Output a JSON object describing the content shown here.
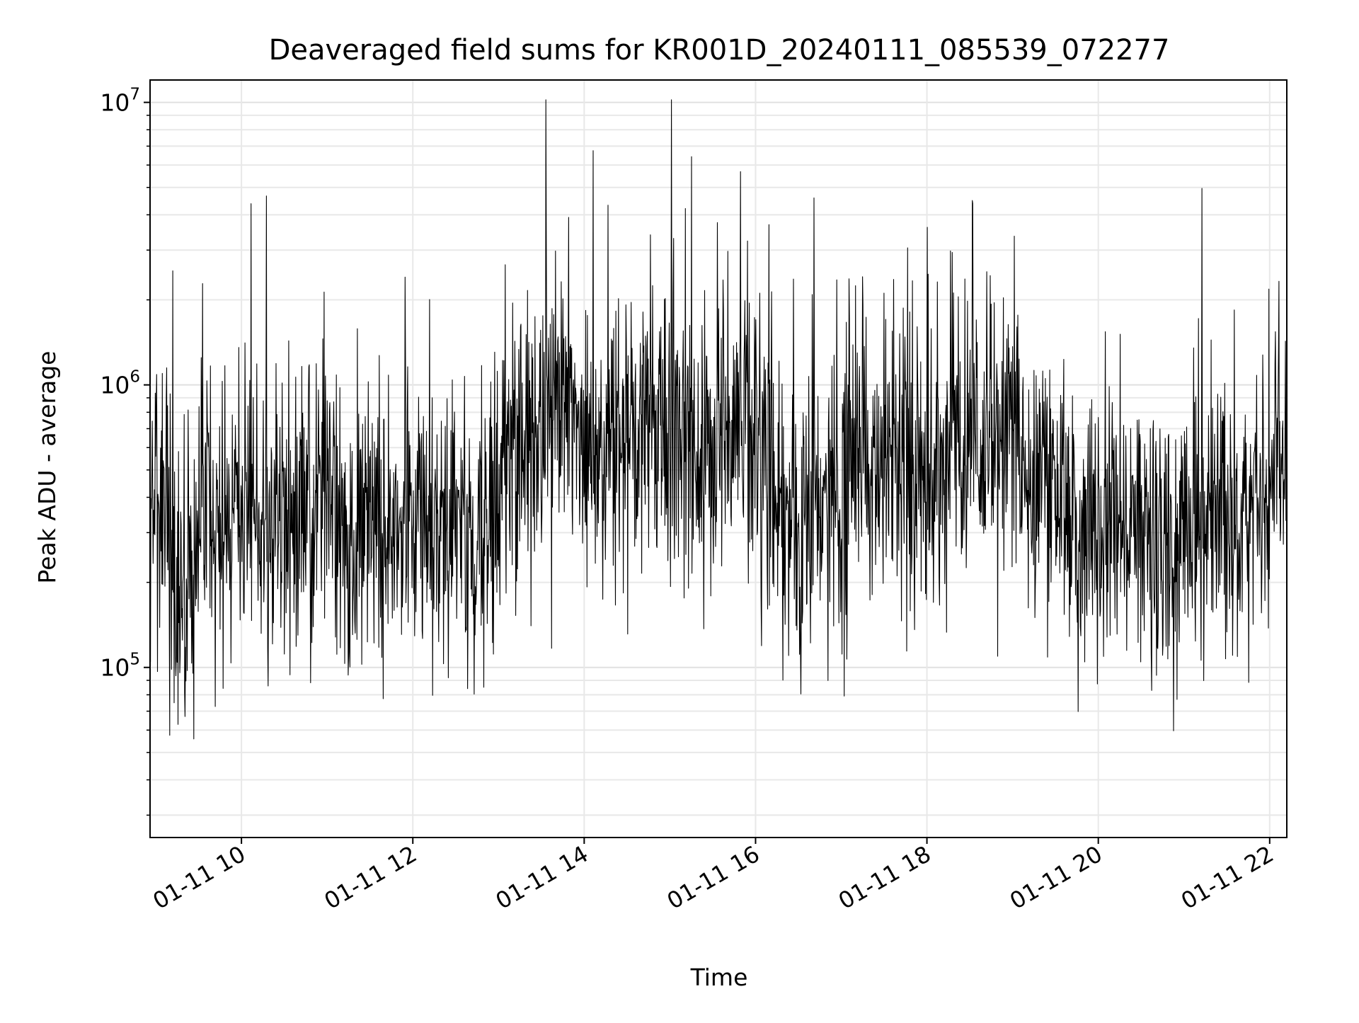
{
  "chart_data": {
    "type": "line",
    "title": "Deaveraged field sums for KR001D_20240111_085539_072277",
    "xlabel": "Time",
    "ylabel": "Peak ADU - average",
    "y_scale": "log",
    "ylim": [
      25000,
      12000000
    ],
    "y_tick_labels": [
      {
        "base": "10",
        "exp": "5",
        "value": 100000
      },
      {
        "base": "10",
        "exp": "6",
        "value": 1000000
      },
      {
        "base": "10",
        "exp": "7",
        "value": 10000000
      }
    ],
    "xlim": [
      "2024-01-11 08:56",
      "2024-01-11 22:12"
    ],
    "x_tick_labels": [
      {
        "label": "01-11 10",
        "time": "2024-01-11 10:00"
      },
      {
        "label": "01-11 12",
        "time": "2024-01-11 12:00"
      },
      {
        "label": "01-11 14",
        "time": "2024-01-11 14:00"
      },
      {
        "label": "01-11 16",
        "time": "2024-01-11 16:00"
      },
      {
        "label": "01-11 18",
        "time": "2024-01-11 18:00"
      },
      {
        "label": "01-11 20",
        "time": "2024-01-11 20:00"
      },
      {
        "label": "01-11 22",
        "time": "2024-01-11 22:00"
      }
    ],
    "grid": true,
    "line_color": "#000000",
    "series": [
      {
        "x": [
          "2024-01-11 08:56",
          "2024-01-11 09:00",
          "2024-01-11 09:10",
          "2024-01-11 09:20",
          "2024-01-11 09:30",
          "2024-01-11 09:40",
          "2024-01-11 09:50",
          "2024-01-11 10:00",
          "2024-01-11 10:15",
          "2024-01-11 10:30",
          "2024-01-11 10:45",
          "2024-01-11 11:00",
          "2024-01-11 11:15",
          "2024-01-11 11:30",
          "2024-01-11 11:45",
          "2024-01-11 12:00",
          "2024-01-11 12:15",
          "2024-01-11 12:30",
          "2024-01-11 12:45",
          "2024-01-11 13:00",
          "2024-01-11 13:15",
          "2024-01-11 13:30",
          "2024-01-11 13:45",
          "2024-01-11 14:00",
          "2024-01-11 14:15",
          "2024-01-11 14:30",
          "2024-01-11 14:45",
          "2024-01-11 15:00",
          "2024-01-11 15:15",
          "2024-01-11 15:30",
          "2024-01-11 15:45",
          "2024-01-11 16:00",
          "2024-01-11 16:15",
          "2024-01-11 16:30",
          "2024-01-11 16:45",
          "2024-01-11 17:00",
          "2024-01-11 17:15",
          "2024-01-11 17:30",
          "2024-01-11 17:45",
          "2024-01-11 18:00",
          "2024-01-11 18:15",
          "2024-01-11 18:30",
          "2024-01-11 18:45",
          "2024-01-11 19:00",
          "2024-01-11 19:15",
          "2024-01-11 19:30",
          "2024-01-11 19:45",
          "2024-01-11 20:00",
          "2024-01-11 20:15",
          "2024-01-11 20:30",
          "2024-01-11 20:45",
          "2024-01-11 21:00",
          "2024-01-11 21:15",
          "2024-01-11 21:30",
          "2024-01-11 21:45",
          "2024-01-11 22:00",
          "2024-01-11 22:12"
        ],
        "y": [
          450000,
          350000,
          250000,
          200000,
          320000,
          330000,
          300000,
          310000,
          350000,
          330000,
          340000,
          380000,
          320000,
          270000,
          260000,
          370000,
          330000,
          300000,
          250000,
          400000,
          650000,
          700000,
          800000,
          650000,
          600000,
          700000,
          750000,
          800000,
          550000,
          600000,
          700000,
          550000,
          350000,
          300000,
          330000,
          500000,
          550000,
          500000,
          520000,
          520000,
          550000,
          650000,
          600000,
          800000,
          450000,
          400000,
          320000,
          280000,
          300000,
          330000,
          260000,
          290000,
          300000,
          310000,
          320000,
          500000,
          550000
        ]
      }
    ]
  }
}
